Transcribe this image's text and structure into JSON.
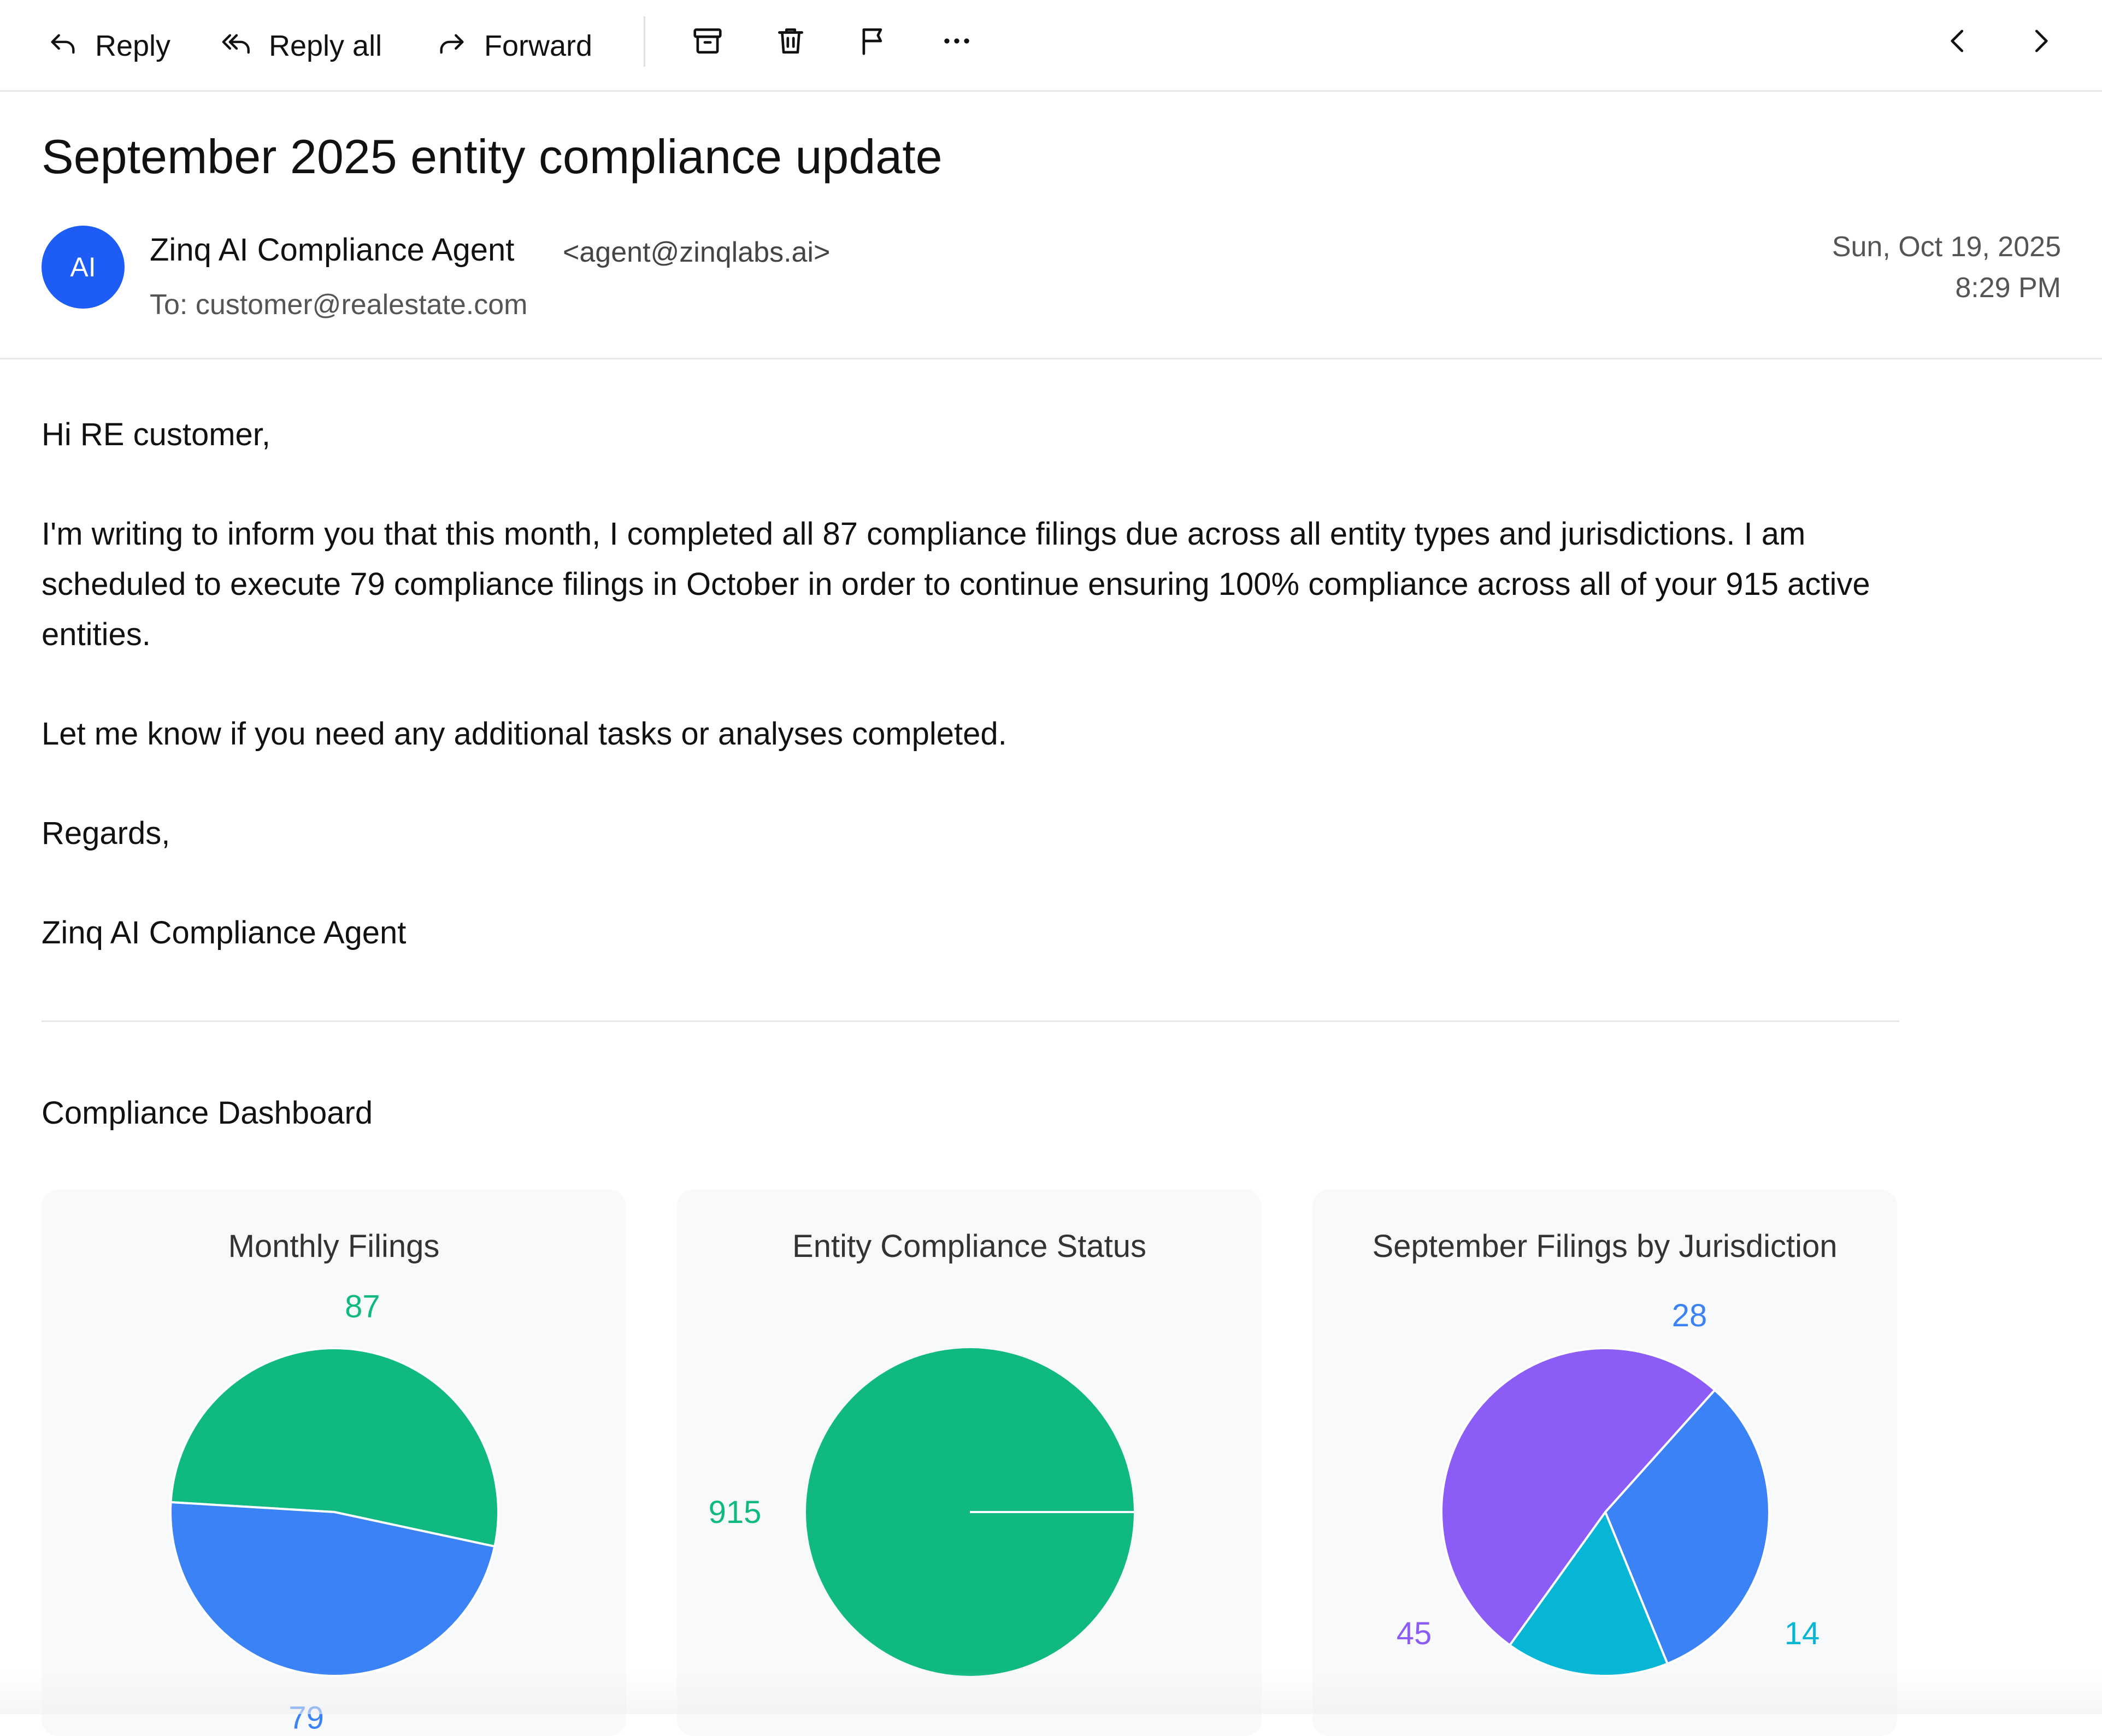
{
  "toolbar": {
    "reply_label": "Reply",
    "reply_all_label": "Reply all",
    "forward_label": "Forward",
    "icons": [
      "reply-icon",
      "reply-all-icon",
      "forward-icon",
      "archive-icon",
      "trash-icon",
      "flag-icon",
      "more-icon",
      "previous-icon",
      "next-icon"
    ]
  },
  "email": {
    "subject": "September 2025 entity compliance update",
    "avatar_initials": "AI",
    "sender_name": "Zinq AI Compliance Agent",
    "sender_email": "<agent@zinqlabs.ai>",
    "recipient": "To: customer@realestate.com",
    "date": "Sun, Oct 19, 2025",
    "time": "8:29 PM",
    "body": {
      "greeting": "Hi RE customer,",
      "paragraph": "I'm writing to inform you that this month, I completed all 87 compliance filings due across all entity types and jurisdictions. I am scheduled to execute 79 compliance filings in October in order to continue ensuring 100% compliance across all of your 915 active entities.",
      "request": "Let me know if you need any additional tasks or analyses completed.",
      "closing": "Regards,",
      "signature": "Zinq AI Compliance Agent"
    }
  },
  "dashboard": {
    "title": "Compliance Dashboard"
  },
  "colors": {
    "avatar": "#1d5cf5",
    "green": "#10b981",
    "blue": "#3b82f6",
    "purple": "#8b5cf6",
    "cyan": "#06b6d4"
  },
  "chart_data": [
    {
      "type": "pie",
      "title": "Monthly Filings",
      "slices": [
        {
          "value": 87,
          "label": "87",
          "color": "#10b981"
        },
        {
          "value": 79,
          "label": "79",
          "color": "#3b82f6"
        }
      ]
    },
    {
      "type": "pie",
      "title": "Entity Compliance Status",
      "slices": [
        {
          "value": 915,
          "label": "915",
          "color": "#10b981"
        }
      ]
    },
    {
      "type": "pie",
      "title": "September Filings by Jurisdiction",
      "slices": [
        {
          "value": 28,
          "label": "28",
          "color": "#3b82f6"
        },
        {
          "value": 14,
          "label": "14",
          "color": "#06b6d4"
        },
        {
          "value": 45,
          "label": "45",
          "color": "#8b5cf6"
        }
      ]
    }
  ]
}
